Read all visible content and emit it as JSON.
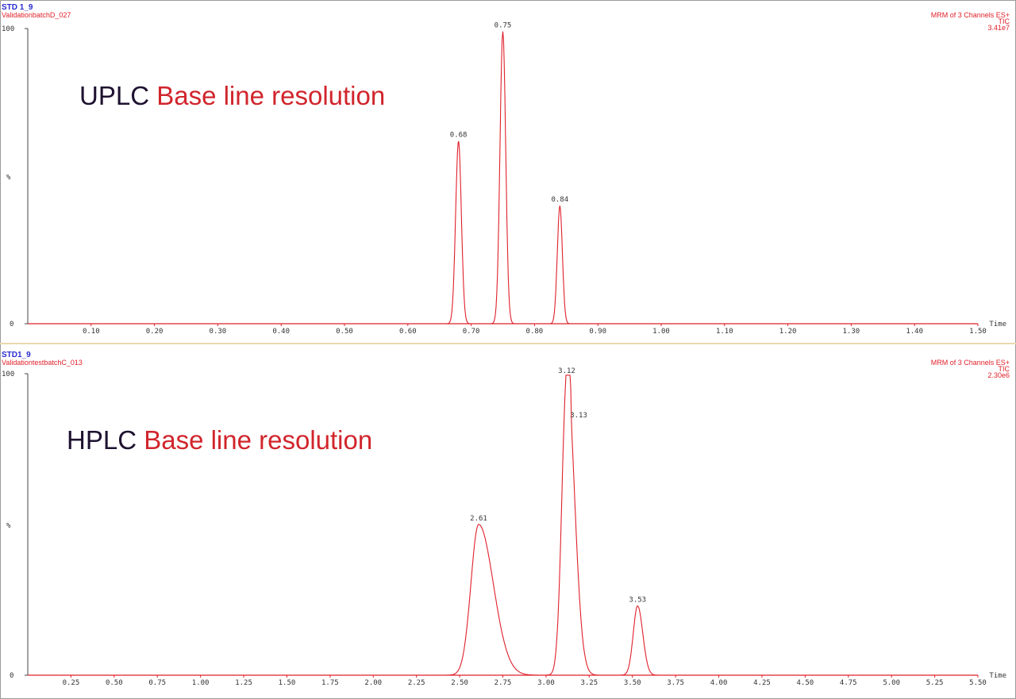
{
  "chart_data": [
    {
      "type": "line",
      "sample_id": "STD 1_9",
      "file_name": "ValidationbatchD_027",
      "channel_info": "MRM of 3 Channels ES+",
      "trace_type": "TIC",
      "intensity": "3.41e7",
      "ylabel": "%",
      "xlabel": "Time",
      "y_top_tick": "100",
      "y_bottom_tick": "0",
      "xlim": [
        0.0,
        1.5
      ],
      "ylim": [
        0,
        100
      ],
      "x_ticks": [
        "0.10",
        "0.20",
        "0.30",
        "0.40",
        "0.50",
        "0.60",
        "0.70",
        "0.80",
        "0.90",
        "1.00",
        "1.10",
        "1.20",
        "1.30",
        "1.40",
        "1.50"
      ],
      "annotation_prefix": "UPLC",
      "annotation_suffix": "Base line resolution",
      "peaks": [
        {
          "rt": 0.68,
          "label": "0.68",
          "height": 62,
          "sigma": 0.0045
        },
        {
          "rt": 0.75,
          "label": "0.75",
          "height": 99,
          "sigma": 0.0045
        },
        {
          "rt": 0.84,
          "label": "0.84",
          "height": 40,
          "sigma": 0.004
        }
      ]
    },
    {
      "type": "line",
      "sample_id": "STD1_9",
      "file_name": "ValidationtestbatchC_013",
      "channel_info": "MRM of 3 Channels ES+",
      "trace_type": "TIC",
      "intensity": "2.30e6",
      "ylabel": "%",
      "xlabel": "Time",
      "y_top_tick": "100",
      "y_bottom_tick": "0",
      "xlim": [
        0.0,
        5.5
      ],
      "ylim": [
        0,
        100
      ],
      "x_ticks": [
        "0.25",
        "0.50",
        "0.75",
        "1.00",
        "1.25",
        "1.50",
        "1.75",
        "2.00",
        "2.25",
        "2.50",
        "2.75",
        "3.00",
        "3.25",
        "3.50",
        "3.75",
        "4.00",
        "4.25",
        "4.50",
        "4.75",
        "5.00",
        "5.25",
        "5.50"
      ],
      "annotation_prefix": "HPLC",
      "annotation_suffix": "Base line resolution",
      "peaks": [
        {
          "rt": 2.61,
          "label": "2.61",
          "height": 50,
          "sigma": 0.045,
          "tail": 0.085
        },
        {
          "rt": 3.12,
          "label": "3.12",
          "height": 99,
          "sigma": 0.028,
          "tail": 0.045
        },
        {
          "rt": 3.13,
          "label": "3.13",
          "height": 85,
          "sigma": 0.006
        },
        {
          "rt": 3.53,
          "label": "3.53",
          "height": 23,
          "sigma": 0.025,
          "tail": 0.03
        }
      ]
    }
  ]
}
